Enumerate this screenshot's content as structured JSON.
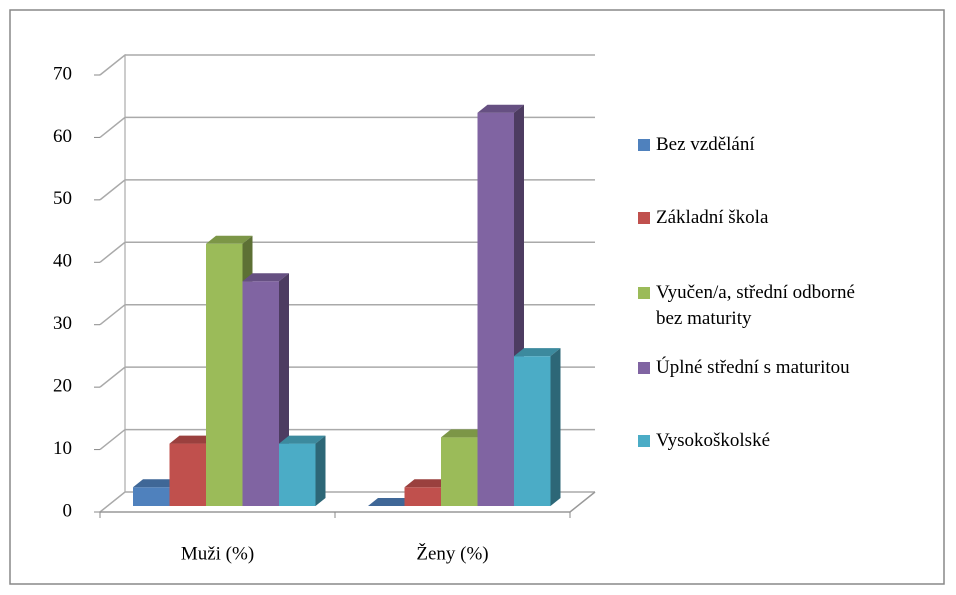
{
  "chart_data": {
    "type": "bar3d",
    "categories": [
      "Muži (%)",
      "Ženy (%)"
    ],
    "series": [
      {
        "name": "Bez vzdělání",
        "color": "#4f81bd",
        "values": [
          3,
          0
        ]
      },
      {
        "name": "Základní škola",
        "color": "#c0504d",
        "values": [
          10,
          3
        ]
      },
      {
        "name": "Vyučen/a, střední odborné bez maturity",
        "color": "#9bbb59",
        "values": [
          42,
          11
        ]
      },
      {
        "name": "Úplné střední s maturitou",
        "color": "#8064a2",
        "values": [
          36,
          63
        ]
      },
      {
        "name": "Vysokoškolské",
        "color": "#4bacc6",
        "values": [
          10,
          24
        ]
      }
    ],
    "ylim": [
      0,
      70
    ],
    "yticks": [
      0,
      10,
      20,
      30,
      40,
      50,
      60,
      70
    ],
    "grid": true,
    "legend": "right"
  }
}
